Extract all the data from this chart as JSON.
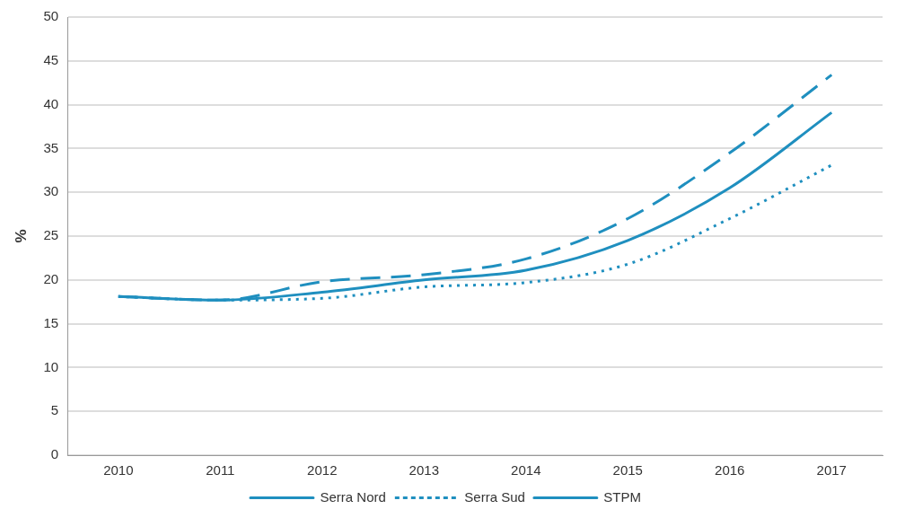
{
  "chart_data": {
    "type": "line",
    "ylabel": "%",
    "categories": [
      "2010",
      "2011",
      "2012",
      "2013",
      "2014",
      "2015",
      "2016",
      "2017"
    ],
    "series": [
      {
        "name": "Serra Nord",
        "color": "#1f8fbf",
        "line_style": "dashed",
        "values": [
          18.1,
          17.7,
          19.8,
          20.6,
          22.4,
          27.0,
          34.5,
          43.4
        ]
      },
      {
        "name": "Serra Sud",
        "color": "#1f8fbf",
        "line_style": "dotted",
        "values": [
          18.1,
          17.7,
          17.9,
          19.2,
          19.7,
          21.8,
          27.0,
          33.1
        ]
      },
      {
        "name": "STPM",
        "color": "#1f8fbf",
        "line_style": "solid",
        "values": [
          18.1,
          17.7,
          18.6,
          20.0,
          21.1,
          24.5,
          30.5,
          39.1
        ]
      }
    ],
    "ylim": [
      0,
      50
    ],
    "yticks": [
      0,
      5,
      10,
      15,
      20,
      25,
      30,
      35,
      40,
      45,
      50
    ],
    "grid": "y",
    "legend": "bottom",
    "marker": "none"
  }
}
